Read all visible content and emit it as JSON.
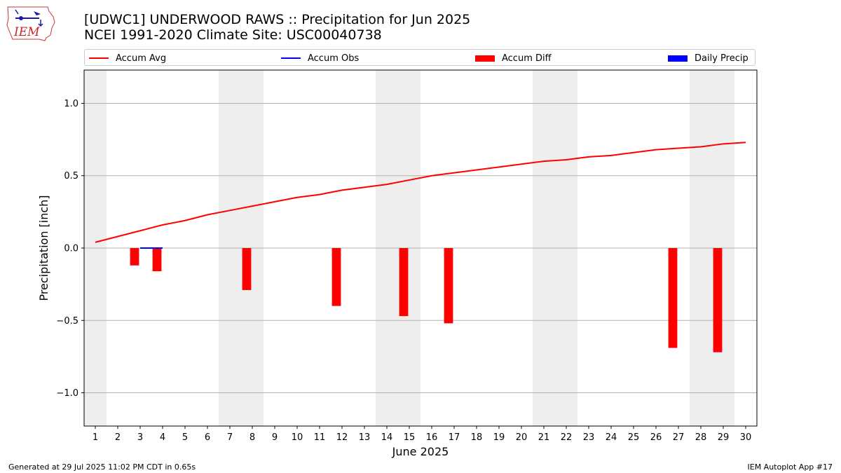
{
  "header": {
    "title_line1": "[UDWC1] UNDERWOOD RAWS :: Precipitation for Jun 2025",
    "title_line2": "NCEI 1991-2020 Climate Site: USC00040738",
    "logo_text": "IEM"
  },
  "footer": {
    "left": "Generated at 29 Jul 2025 11:02 PM CDT in 0.65s",
    "right": "IEM Autoplot App #17"
  },
  "colors": {
    "accum_avg": "#ff0000",
    "accum_obs": "#0000ff",
    "accum_diff": "#ff0000",
    "daily_precip": "#0000ff",
    "weekend_shade": "#eeeeee",
    "grid": "#b0b0b0"
  },
  "chart_data": {
    "type": "line",
    "xlabel": "June 2025",
    "ylabel": "Precipitation [inch]",
    "x": [
      1,
      2,
      3,
      4,
      5,
      6,
      7,
      8,
      9,
      10,
      11,
      12,
      13,
      14,
      15,
      16,
      17,
      18,
      19,
      20,
      21,
      22,
      23,
      24,
      25,
      26,
      27,
      28,
      29,
      30
    ],
    "xlim": [
      0.5,
      30.5
    ],
    "ylim": [
      -1.23,
      1.23
    ],
    "yticks": [
      -1.0,
      -0.5,
      0.0,
      0.5,
      1.0
    ],
    "ytick_labels": [
      "−1.0",
      "−0.5",
      "0.0",
      "0.5",
      "1.0"
    ],
    "grid": "y",
    "legend_position": "top",
    "weekend_days": [
      [
        1
      ],
      [
        7,
        8
      ],
      [
        14,
        15
      ],
      [
        21,
        22
      ],
      [
        28,
        29
      ]
    ],
    "legend": [
      "Accum Avg",
      "Accum Obs",
      "Accum Diff",
      "Daily Precip"
    ],
    "series": [
      {
        "name": "Accum Avg",
        "kind": "line",
        "x": [
          1,
          2,
          3,
          4,
          5,
          6,
          7,
          8,
          9,
          10,
          11,
          12,
          13,
          14,
          15,
          16,
          17,
          18,
          19,
          20,
          21,
          22,
          23,
          24,
          25,
          26,
          27,
          28,
          29,
          30
        ],
        "values": [
          0.04,
          0.08,
          0.12,
          0.16,
          0.19,
          0.23,
          0.26,
          0.29,
          0.32,
          0.35,
          0.37,
          0.4,
          0.42,
          0.44,
          0.47,
          0.5,
          0.52,
          0.54,
          0.56,
          0.58,
          0.6,
          0.61,
          0.63,
          0.64,
          0.66,
          0.68,
          0.69,
          0.7,
          0.72,
          0.73
        ]
      },
      {
        "name": "Accum Obs",
        "kind": "line",
        "x": [
          3,
          4
        ],
        "values": [
          0.0,
          0.0
        ]
      },
      {
        "name": "Accum Diff",
        "kind": "bar",
        "x": [
          3,
          4,
          8,
          12,
          15,
          17,
          27,
          29
        ],
        "values": [
          -0.12,
          -0.16,
          -0.29,
          -0.4,
          -0.47,
          -0.52,
          -0.69,
          -0.72
        ]
      },
      {
        "name": "Daily Precip",
        "kind": "bar",
        "x": [],
        "values": []
      }
    ]
  }
}
